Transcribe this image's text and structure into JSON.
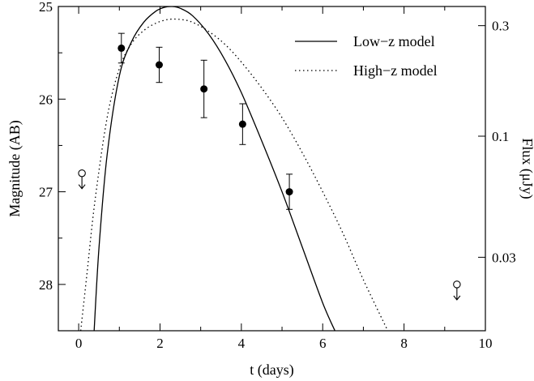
{
  "chart_data": {
    "type": "scatter",
    "xlabel": "t (days)",
    "ylabel": "Magnitude (AB)",
    "ylabel_right": "Flux (μJy)",
    "xlim": [
      -0.5,
      10
    ],
    "ylim": [
      25,
      28.5
    ],
    "y_inverted": true,
    "x_ticks": [
      0,
      2,
      4,
      6,
      8,
      10
    ],
    "y_ticks": [
      25,
      26,
      27,
      28
    ],
    "right_ticks": [
      {
        "label": "0.3",
        "mag": 25.207
      },
      {
        "label": "0.1",
        "mag": 26.4
      },
      {
        "label": "0.03",
        "mag": 27.707
      }
    ],
    "legend": {
      "position": "top-right",
      "entries": [
        {
          "label": "Low−z model",
          "style": "solid"
        },
        {
          "label": "High−z model",
          "style": "dotted"
        }
      ]
    },
    "detections": [
      {
        "t": 1.05,
        "mag": 25.45,
        "err": 0.16
      },
      {
        "t": 1.98,
        "mag": 25.63,
        "err": 0.19
      },
      {
        "t": 3.08,
        "mag": 25.89,
        "err": 0.31
      },
      {
        "t": 4.03,
        "mag": 26.27,
        "err": 0.22
      },
      {
        "t": 5.18,
        "mag": 27.0,
        "err": 0.19
      }
    ],
    "upper_limits": [
      {
        "t": 0.08,
        "mag": 26.8
      },
      {
        "t": 9.3,
        "mag": 28.0
      }
    ],
    "series": [
      {
        "name": "Low−z model",
        "style": "solid",
        "t": [
          0.38,
          0.5,
          0.7,
          1.0,
          1.3,
          1.6,
          1.9,
          2.1,
          2.3,
          2.5,
          2.8,
          3.2,
          3.6,
          4.0,
          4.5,
          5.0,
          5.5,
          6.0,
          6.3
        ],
        "mag": [
          28.5,
          27.6,
          26.6,
          25.75,
          25.38,
          25.17,
          25.05,
          25.01,
          25.0,
          25.02,
          25.1,
          25.3,
          25.58,
          25.93,
          26.45,
          27.0,
          27.6,
          28.2,
          28.5
        ]
      },
      {
        "name": "High−z model",
        "style": "dotted",
        "t": [
          0.05,
          0.2,
          0.4,
          0.7,
          1.0,
          1.3,
          1.6,
          1.9,
          2.2,
          2.5,
          2.8,
          3.2,
          3.6,
          4.0,
          4.5,
          5.0,
          5.5,
          6.0,
          6.5,
          7.0,
          7.6
        ],
        "mag": [
          28.5,
          27.9,
          27.1,
          26.2,
          25.67,
          25.4,
          25.26,
          25.18,
          25.14,
          25.14,
          25.17,
          25.27,
          25.41,
          25.6,
          25.88,
          26.2,
          26.58,
          27.0,
          27.45,
          27.95,
          28.5
        ]
      }
    ]
  }
}
